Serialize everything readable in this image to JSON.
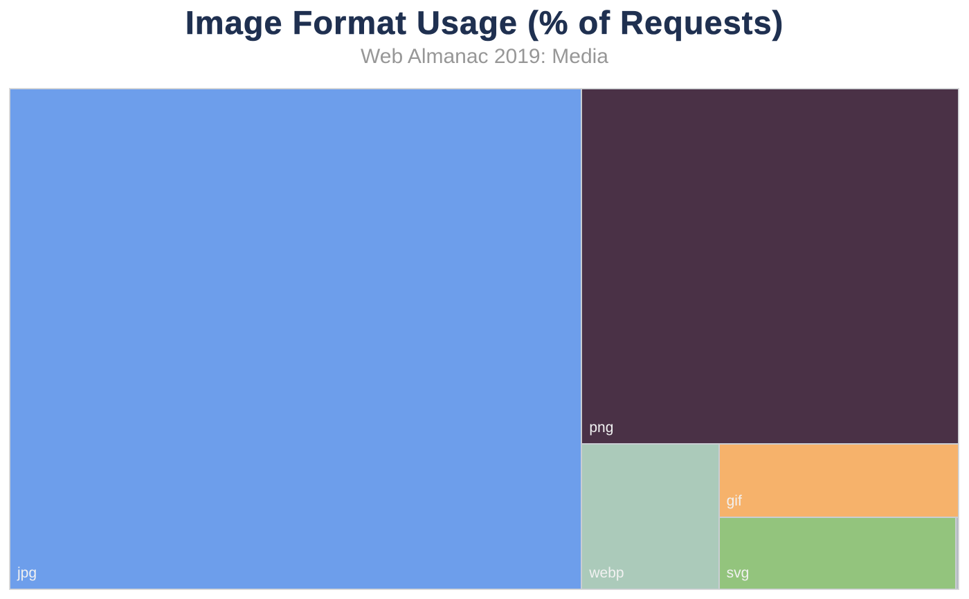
{
  "header": {
    "title": "Image Format Usage (% of Requests)",
    "subtitle": "Web Almanac 2019: Media"
  },
  "chart_data": {
    "type": "treemap",
    "title": "Image Format Usage (% of Requests)",
    "subtitle": "Web Almanac 2019: Media",
    "unit": "% of requests",
    "legend": "none",
    "layout": "spiral-slice",
    "label_position": "bottom-left",
    "label_color": "#F1F1F1",
    "items": [
      {
        "label": "jpg",
        "value": 60.3,
        "color": "#6D9EEB"
      },
      {
        "label": "png",
        "value": 28.2,
        "color": "#4A3146"
      },
      {
        "label": "webp",
        "value": 4.2,
        "color": "#ABCABA"
      },
      {
        "label": "gif",
        "value": 3.7,
        "color": "#F6B26B"
      },
      {
        "label": "svg",
        "value": 3.6,
        "color": "#93C47D"
      },
      {
        "label": "",
        "value": 0.04,
        "color": "#B3B9C2"
      }
    ]
  },
  "colors": {
    "title": "#1F3050",
    "subtitle": "#979797",
    "cell_gap": "#C9CDD3",
    "plot_border": "#DEDEDE",
    "background": "#FFFFFF"
  }
}
